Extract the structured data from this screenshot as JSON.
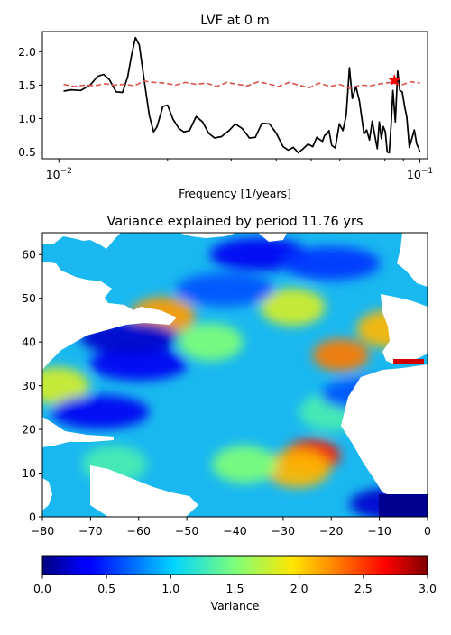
{
  "chart_data": [
    {
      "type": "line",
      "title": "LVF at 0 m",
      "xlabel": "Frequency [1/years]",
      "ylabel": "",
      "x_scale": "log",
      "xlim": [
        0.009,
        0.105
      ],
      "ylim": [
        0.4,
        2.3
      ],
      "x_ticks": [
        {
          "value": 0.01,
          "base": "10",
          "exp": "−2"
        },
        {
          "value": 0.1,
          "base": "10",
          "exp": "−1"
        }
      ],
      "y_ticks": [
        {
          "value": 0.5,
          "label": "0.5"
        },
        {
          "value": 1.0,
          "label": "1.0"
        },
        {
          "value": 1.5,
          "label": "1.5"
        },
        {
          "value": 2.0,
          "label": "2.0"
        }
      ],
      "series": [
        {
          "color": "#000000",
          "style": "solid",
          "x": [
            0.0103,
            0.0108,
            0.0115,
            0.0122,
            0.0128,
            0.0133,
            0.0138,
            0.0144,
            0.015,
            0.0155,
            0.0159,
            0.0163,
            0.0167,
            0.0173,
            0.0178,
            0.0183,
            0.0187,
            0.0194,
            0.02,
            0.0207,
            0.0215,
            0.0222,
            0.023,
            0.024,
            0.025,
            0.026,
            0.027,
            0.0282,
            0.0296,
            0.0308,
            0.0322,
            0.0337,
            0.035,
            0.0365,
            0.0383,
            0.04,
            0.0418,
            0.0432,
            0.0446,
            0.046,
            0.0475,
            0.049,
            0.0505,
            0.0518,
            0.053,
            0.0537,
            0.0545,
            0.0553,
            0.056,
            0.057,
            0.0583,
            0.0598,
            0.0612,
            0.0625,
            0.0638,
            0.065,
            0.0665,
            0.068,
            0.069,
            0.07,
            0.0712,
            0.0725,
            0.0738,
            0.075,
            0.0762,
            0.0772,
            0.0782,
            0.0792,
            0.0802,
            0.0812,
            0.0822,
            0.0832,
            0.0842,
            0.0855,
            0.0868,
            0.088,
            0.0893,
            0.0907,
            0.092,
            0.0935,
            0.095,
            0.0965,
            0.098,
            0.099,
            0.1
          ],
          "y": [
            1.41,
            1.43,
            1.42,
            1.5,
            1.63,
            1.66,
            1.58,
            1.4,
            1.39,
            1.62,
            1.95,
            2.21,
            2.1,
            1.5,
            1.05,
            0.8,
            0.88,
            1.18,
            1.2,
            0.99,
            0.85,
            0.8,
            0.82,
            1.03,
            0.95,
            0.78,
            0.71,
            0.73,
            0.82,
            0.92,
            0.85,
            0.71,
            0.72,
            0.93,
            0.92,
            0.78,
            0.58,
            0.53,
            0.57,
            0.49,
            0.55,
            0.62,
            0.58,
            0.72,
            0.68,
            0.66,
            0.75,
            0.77,
            0.82,
            0.6,
            0.56,
            0.92,
            0.82,
            1.05,
            1.76,
            1.3,
            1.48,
            1.26,
            1.02,
            0.77,
            0.83,
            0.68,
            0.96,
            0.75,
            0.55,
            0.95,
            0.7,
            0.88,
            0.8,
            0.5,
            0.49,
            0.9,
            1.42,
            0.95,
            1.71,
            1.42,
            1.4,
            1.18,
            1.02,
            0.57,
            0.7,
            0.83,
            0.62,
            0.57,
            0.5
          ]
        },
        {
          "color": "#d9534f",
          "style": "dashed",
          "x": [
            0.0103,
            0.011,
            0.0118,
            0.0126,
            0.0134,
            0.0142,
            0.0152,
            0.0162,
            0.0172,
            0.0184,
            0.0196,
            0.021,
            0.0224,
            0.024,
            0.0256,
            0.0274,
            0.0292,
            0.0312,
            0.0334,
            0.0356,
            0.038,
            0.0406,
            0.0434,
            0.0462,
            0.0494,
            0.0526,
            0.0562,
            0.06,
            0.064,
            0.0684,
            0.073,
            0.0778,
            0.083,
            0.0886,
            0.0945,
            0.1
          ],
          "y": [
            1.51,
            1.48,
            1.5,
            1.49,
            1.52,
            1.5,
            1.51,
            1.49,
            1.56,
            1.54,
            1.53,
            1.5,
            1.54,
            1.51,
            1.53,
            1.48,
            1.54,
            1.51,
            1.49,
            1.55,
            1.52,
            1.48,
            1.54,
            1.5,
            1.46,
            1.53,
            1.48,
            1.51,
            1.45,
            1.5,
            1.49,
            1.52,
            1.54,
            1.5,
            1.55,
            1.53
          ]
        }
      ],
      "marker": {
        "x": 0.085,
        "y": 1.57,
        "shape": "star",
        "color": "#ff0000"
      }
    },
    {
      "type": "heatmap",
      "title": "Variance explained by period 11.76 yrs",
      "xlabel": "",
      "ylabel": "",
      "xlim": [
        -80,
        0
      ],
      "ylim": [
        0,
        65
      ],
      "x_ticks": [
        {
          "value": -80,
          "label": "−80"
        },
        {
          "value": -70,
          "label": "−70"
        },
        {
          "value": -60,
          "label": "−60"
        },
        {
          "value": -50,
          "label": "−50"
        },
        {
          "value": -40,
          "label": "−40"
        },
        {
          "value": -30,
          "label": "−30"
        },
        {
          "value": -20,
          "label": "−20"
        },
        {
          "value": -10,
          "label": "−10"
        },
        {
          "value": 0,
          "label": "0"
        }
      ],
      "y_ticks": [
        {
          "value": 0,
          "label": "0"
        },
        {
          "value": 10,
          "label": "10"
        },
        {
          "value": 20,
          "label": "20"
        },
        {
          "value": 30,
          "label": "30"
        },
        {
          "value": 40,
          "label": "40"
        },
        {
          "value": 50,
          "label": "50"
        },
        {
          "value": 60,
          "label": "60"
        }
      ],
      "colormap": "jet",
      "colorbar": {
        "label": "Variance",
        "range": [
          0,
          3
        ],
        "ticks": [
          {
            "value": 0.0,
            "label": "0.0"
          },
          {
            "value": 0.5,
            "label": "0.5"
          },
          {
            "value": 1.0,
            "label": "1.0"
          },
          {
            "value": 1.5,
            "label": "1.5"
          },
          {
            "value": 2.0,
            "label": "2.0"
          },
          {
            "value": 2.5,
            "label": "2.5"
          },
          {
            "value": 3.0,
            "label": "3.0"
          }
        ]
      },
      "features": [
        {
          "lon": -24,
          "lat": 14,
          "value": 2.6
        },
        {
          "lon": -27,
          "lat": 11,
          "value": 2.1
        },
        {
          "lon": -38,
          "lat": 12,
          "value": 1.5
        },
        {
          "lon": -18,
          "lat": 37,
          "value": 2.3
        },
        {
          "lon": -8,
          "lat": 43,
          "value": 2.1
        },
        {
          "lon": -55,
          "lat": 46,
          "value": 2.2
        },
        {
          "lon": -28,
          "lat": 48,
          "value": 1.8
        },
        {
          "lon": -45,
          "lat": 40,
          "value": 1.5
        },
        {
          "lon": -77,
          "lat": 30,
          "value": 1.8
        },
        {
          "lon": -60,
          "lat": 35,
          "value": 0.3
        },
        {
          "lon": -62,
          "lat": 41,
          "value": 0.2
        },
        {
          "lon": -68,
          "lat": 24,
          "value": 0.3
        },
        {
          "lon": -65,
          "lat": 12,
          "value": 1.3
        },
        {
          "lon": -35,
          "lat": 60,
          "value": 0.3
        },
        {
          "lon": -20,
          "lat": 58,
          "value": 0.5
        },
        {
          "lon": -42,
          "lat": 52,
          "value": 0.6
        },
        {
          "lon": -20,
          "lat": 24,
          "value": 1.3
        },
        {
          "lon": -12,
          "lat": 28,
          "value": 0.6
        },
        {
          "lon": -6,
          "lat": 3,
          "value": 0.2
        }
      ]
    }
  ]
}
